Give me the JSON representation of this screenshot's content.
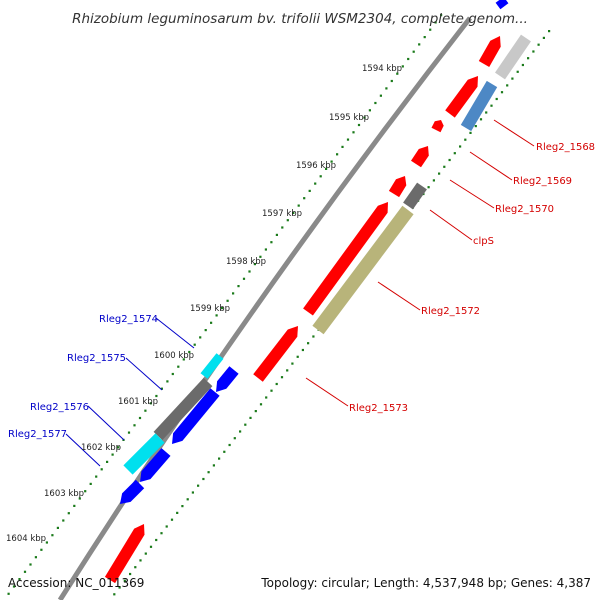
{
  "title": "Rhizobium leguminosarum bv. trifolii WSM2304, complete genom...",
  "colors": {
    "forward_gene": "#ff0000",
    "reverse_gene": "#0000ff",
    "pseudo_or_trna": "#00e0ee",
    "hypothetical": "#6b6b6b",
    "light_gray": "#c8c8c8",
    "steel_blue": "#4d88c5",
    "olive": "#b8b47a",
    "tick_dots": "#1a7a1a",
    "label_forward": "#d40000",
    "label_reverse": "#0000c8"
  },
  "kbp_labels": [
    "1594 kbp",
    "1595 kbp",
    "1596 kbp",
    "1597 kbp",
    "1598 kbp",
    "1599 kbp",
    "1600 kbp",
    "1601 kbp",
    "1602 kbp",
    "1603 kbp",
    "1604 kbp"
  ],
  "gene_labels_right": [
    "Rleg2_1568",
    "Rleg2_1569",
    "Rleg2_1570",
    "clpS",
    "Rleg2_1572",
    "Rleg2_1573"
  ],
  "gene_labels_left": [
    "Rleg2_1574",
    "Rleg2_1575",
    "Rleg2_1576",
    "Rleg2_1577"
  ],
  "footer": {
    "accession": "Accession: NC_011369",
    "topology": "Topology: circular; Length: 4,537,948 bp; Genes: 4,387"
  }
}
